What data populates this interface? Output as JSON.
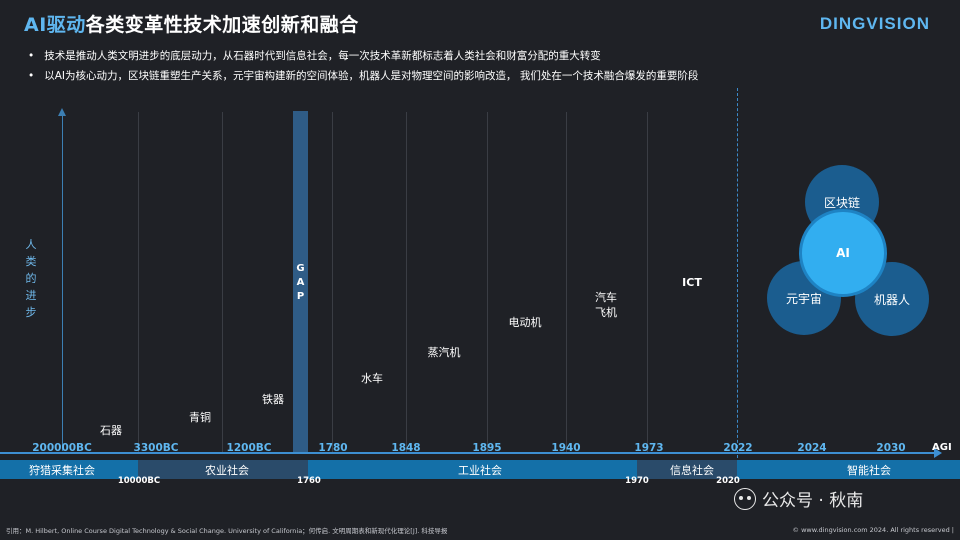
{
  "header": {
    "title_highlight": "AI驱动",
    "title_rest": "各类变革性技术加速创新和融合",
    "logo": "DINGVISION"
  },
  "bullets": [
    "技术是推动人类文明进步的底层动力，从石器时代到信息社会，每一次技术革新都标志着人类社会和财富分配的重大转变",
    "以AI为核心动力，区块链重塑生产关系，元宇宙构建新的空间体验，机器人是对物理空间的影响改造， 我们处在一个技术融合爆发的重要阶段"
  ],
  "y_axis_label": "人类的进步",
  "gap_label": "GAP",
  "axis_years": [
    "200000BC",
    "3300BC",
    "1200BC",
    "1780",
    "1848",
    "1895",
    "1940",
    "1973",
    "2022",
    "2024",
    "2030"
  ],
  "axis_end": "AGI",
  "milestones": [
    {
      "label": "石器"
    },
    {
      "label": "青铜"
    },
    {
      "label": "铁器"
    },
    {
      "label": "水车"
    },
    {
      "label": "蒸汽机"
    },
    {
      "label": "电动机"
    },
    {
      "label": "汽车\n飞机"
    },
    {
      "label": "ICT"
    }
  ],
  "eras": [
    {
      "label": "狩猎采集社会"
    },
    {
      "label": "农业社会"
    },
    {
      "label": "工业社会"
    },
    {
      "label": "信息社会"
    },
    {
      "label": "智能社会"
    }
  ],
  "era_boundaries": [
    "10000BC",
    "1760",
    "1970",
    "2020"
  ],
  "tech_circles": {
    "top": "区块链",
    "center": "AI",
    "left": "元宇宙",
    "right": "机器人"
  },
  "footer": {
    "citation": "引用：M. Hilbert, Online Course Digital Technology & Social Change. University of California；何传启. 文明周期表和新现代化理论[J]. 科技导报",
    "copyright": "© www.dingvision.com 2024. All rights reserved  |"
  },
  "watermark": "公众号 · 秋南",
  "colors": {
    "background": "#1f2126",
    "accent": "#5fb7f0",
    "era_bar": "#1470a8",
    "ai_circle": "#32aef0",
    "tech_circle": "#1b5d8f"
  }
}
